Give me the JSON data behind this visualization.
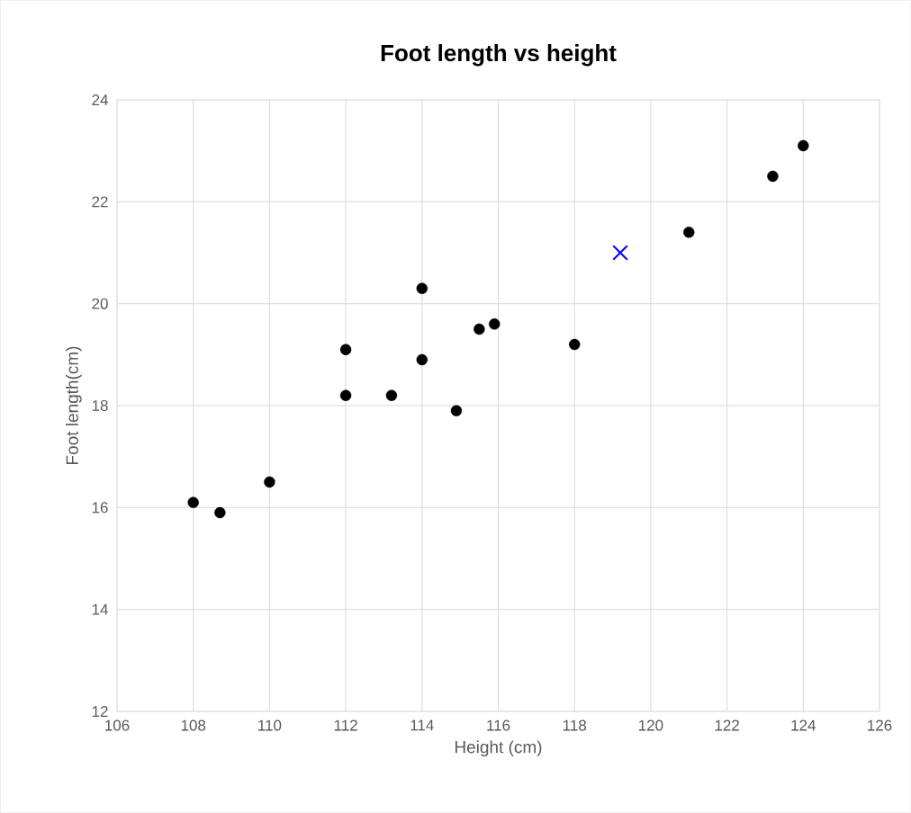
{
  "chart_data": {
    "type": "scatter",
    "title": "Foot length vs height",
    "xlabel": "Height (cm)",
    "ylabel": "Foot length(cm)",
    "xlim": [
      106,
      126
    ],
    "xticks": [
      106,
      108,
      110,
      112,
      114,
      116,
      118,
      120,
      122,
      124,
      126
    ],
    "ylim": [
      12,
      24
    ],
    "yticks": [
      12,
      14,
      16,
      18,
      20,
      22,
      24
    ],
    "grid": true,
    "series": [
      {
        "color": "#000000",
        "marker": "circle",
        "x": [
          108,
          108.7,
          110,
          112,
          112,
          113.2,
          114,
          114,
          114.9,
          115.5,
          115.9,
          118,
          121,
          123.2,
          124
        ],
        "values": [
          16.1,
          15.9,
          16.5,
          19.1,
          18.2,
          18.2,
          20.3,
          18.9,
          17.9,
          19.5,
          19.6,
          19.2,
          21.4,
          22.5,
          23.1
        ]
      },
      {
        "color": "#0000ff",
        "marker": "cross",
        "x": [
          119.2
        ],
        "values": [
          21.0
        ]
      }
    ]
  }
}
